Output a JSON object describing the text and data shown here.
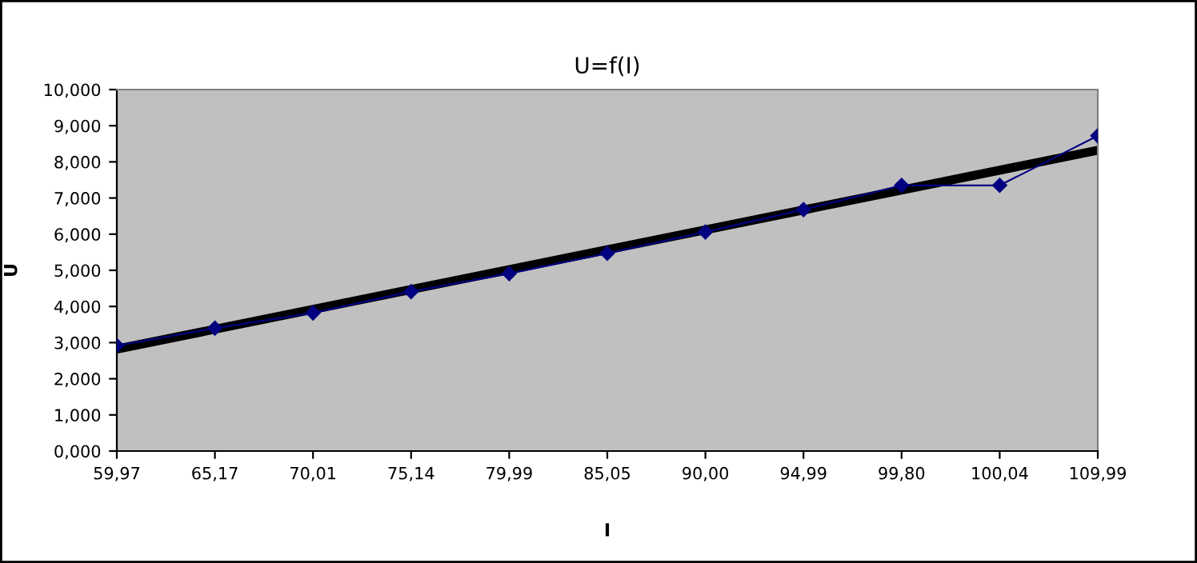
{
  "chart_data": {
    "type": "line",
    "title": "U=f(I)",
    "xlabel": "I",
    "ylabel": "U",
    "categories": [
      "59,97",
      "65,17",
      "70,01",
      "75,14",
      "79,99",
      "85,05",
      "90,00",
      "94,99",
      "99,80",
      "100,04",
      "109,99"
    ],
    "series": [
      {
        "color": "#000080",
        "marker": "diamond",
        "values": [
          2.92,
          3.4,
          3.82,
          4.41,
          4.91,
          5.47,
          6.06,
          6.68,
          7.35,
          7.35,
          8.72
        ]
      },
      {
        "color": "#000000",
        "marker": "none",
        "values": [
          2.82,
          null,
          null,
          null,
          null,
          null,
          null,
          null,
          null,
          null,
          8.32
        ]
      }
    ],
    "ylim": [
      0,
      10
    ],
    "yticks": [
      {
        "value": 0,
        "label": "0,000"
      },
      {
        "value": 1,
        "label": "1,000"
      },
      {
        "value": 2,
        "label": "2,000"
      },
      {
        "value": 3,
        "label": "3,000"
      },
      {
        "value": 4,
        "label": "4,000"
      },
      {
        "value": 5,
        "label": "5,000"
      },
      {
        "value": 6,
        "label": "6,000"
      },
      {
        "value": 7,
        "label": "7,000"
      },
      {
        "value": 8,
        "label": "8,000"
      },
      {
        "value": 9,
        "label": "9,000"
      },
      {
        "value": 10,
        "label": "10,000"
      }
    ],
    "grid": false,
    "legend": false
  }
}
